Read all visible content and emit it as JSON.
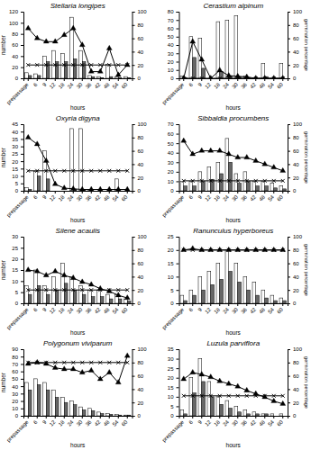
{
  "chart_data": [
    {
      "type": "bar",
      "title": "Stellaria longipes",
      "xlabel": "hours",
      "ylabel": "number",
      "grid": false,
      "categories": [
        "prepassage",
        "6",
        "9",
        "12",
        "18",
        "24",
        "30",
        "36",
        "42",
        "48",
        "54",
        "60"
      ],
      "series": [
        {
          "color": "white",
          "values": [
            10,
            8,
            40,
            50,
            45,
            110,
            50,
            5,
            3,
            25,
            3,
            3
          ]
        },
        {
          "color": "#666666",
          "values": [
            5,
            5,
            30,
            30,
            30,
            35,
            30,
            3,
            1,
            3,
            1,
            1
          ]
        },
        {
          "type": "line",
          "axis": "y2",
          "color": "black",
          "marker": "x",
          "values": [
            20,
            20,
            20,
            20,
            20,
            20,
            20,
            20,
            20,
            20,
            20,
            20
          ]
        },
        {
          "type": "line",
          "axis": "y2",
          "color": "black",
          "marker": "triangle",
          "values": [
            75,
            60,
            55,
            55,
            65,
            75,
            50,
            10,
            10,
            45,
            5,
            20
          ]
        }
      ],
      "ylim": [
        0,
        120
      ],
      "yticks": [
        0,
        20,
        40,
        60,
        80,
        100,
        120
      ],
      "y2lim": [
        0,
        100
      ],
      "y2ticks": [
        0,
        20,
        40,
        60,
        80,
        100
      ]
    },
    {
      "type": "bar",
      "title": "Cerastium alpinum",
      "xlabel": "hours",
      "y2label": "germination percentage",
      "grid": false,
      "categories": [
        "prepassage",
        "6",
        "9",
        "12",
        "18",
        "24",
        "30",
        "36",
        "42",
        "48",
        "54",
        "60"
      ],
      "series": [
        {
          "color": "white",
          "values": [
            3,
            50,
            48,
            0,
            68,
            70,
            75,
            3,
            0,
            18,
            0,
            18
          ]
        },
        {
          "color": "#666666",
          "values": [
            1,
            25,
            12,
            0,
            8,
            3,
            2,
            1,
            0,
            2,
            0,
            0
          ]
        },
        {
          "type": "line",
          "axis": "y2",
          "color": "black",
          "marker": "x",
          "values": [
            0,
            0,
            0,
            0,
            0,
            0,
            0,
            0,
            0,
            0,
            0,
            0
          ]
        },
        {
          "type": "line",
          "axis": "y2",
          "color": "black",
          "marker": "triangle",
          "values": [
            0,
            55,
            28,
            0,
            12,
            4,
            3,
            2,
            0,
            0,
            0,
            0
          ]
        }
      ],
      "ylim": [
        0,
        80
      ],
      "yticks": [
        0,
        10,
        20,
        30,
        40,
        50,
        60,
        70,
        80
      ],
      "y2lim": [
        0,
        100
      ],
      "y2ticks": [
        0,
        20,
        40,
        60,
        80,
        100
      ]
    },
    {
      "type": "bar",
      "title": "Oxyria digyna",
      "xlabel": "hours",
      "ylabel": "number",
      "grid": false,
      "categories": [
        "prepassage",
        "6",
        "9",
        "12",
        "18",
        "24",
        "30",
        "36",
        "42",
        "48",
        "54",
        "60"
      ],
      "series": [
        {
          "color": "white",
          "values": [
            2,
            13,
            27,
            0,
            0,
            42,
            42,
            1,
            0,
            0,
            8,
            0
          ]
        },
        {
          "color": "#666666",
          "values": [
            1,
            10,
            8,
            0,
            0,
            1,
            1,
            0,
            0,
            0,
            0,
            0
          ]
        },
        {
          "type": "line",
          "axis": "y2",
          "color": "black",
          "marker": "x",
          "values": [
            30,
            30,
            30,
            30,
            30,
            30,
            30,
            30,
            30,
            30,
            30,
            30
          ]
        },
        {
          "type": "line",
          "axis": "y2",
          "color": "black",
          "marker": "triangle",
          "values": [
            80,
            70,
            45,
            10,
            4,
            3,
            2,
            2,
            2,
            2,
            2,
            2
          ]
        }
      ],
      "ylim": [
        0,
        45
      ],
      "yticks": [
        0,
        5,
        10,
        15,
        20,
        25,
        30,
        35,
        40,
        45
      ],
      "y2lim": [
        0,
        100
      ],
      "y2ticks": [
        0,
        20,
        40,
        60,
        80,
        100
      ]
    },
    {
      "type": "bar",
      "title": "Sibbaldia procumbens",
      "xlabel": "hours",
      "y2label": "germination percentage",
      "grid": false,
      "categories": [
        "prepassage",
        "6",
        "9",
        "12",
        "18",
        "24",
        "30",
        "36",
        "42",
        "48",
        "54",
        "60"
      ],
      "series": [
        {
          "color": "white",
          "values": [
            10,
            10,
            20,
            25,
            30,
            55,
            18,
            20,
            10,
            10,
            8,
            5
          ]
        },
        {
          "color": "#666666",
          "values": [
            5,
            5,
            10,
            12,
            18,
            30,
            8,
            10,
            5,
            5,
            3,
            2
          ]
        },
        {
          "type": "line",
          "axis": "y2",
          "color": "black",
          "marker": "x",
          "values": [
            15,
            15,
            15,
            15,
            15,
            15,
            15,
            15,
            15,
            15,
            15,
            15
          ]
        },
        {
          "type": "line",
          "axis": "y2",
          "color": "black",
          "marker": "triangle",
          "values": [
            75,
            55,
            60,
            60,
            60,
            55,
            50,
            50,
            45,
            40,
            35,
            30
          ]
        }
      ],
      "ylim": [
        0,
        70
      ],
      "yticks": [
        0,
        10,
        20,
        30,
        40,
        50,
        60,
        70
      ],
      "y2lim": [
        0,
        100
      ],
      "y2ticks": [
        0,
        20,
        40,
        60,
        80,
        100
      ]
    },
    {
      "type": "bar",
      "title": "Silene acaulis",
      "xlabel": "hours",
      "ylabel": "number",
      "grid": false,
      "categories": [
        "prepassage",
        "6",
        "9",
        "12",
        "18",
        "24",
        "30",
        "36",
        "42",
        "48",
        "54",
        "60"
      ],
      "series": [
        {
          "color": "white",
          "values": [
            8,
            15,
            8,
            12,
            18,
            12,
            8,
            6,
            6,
            4,
            4,
            2
          ]
        },
        {
          "color": "#666666",
          "values": [
            4,
            8,
            4,
            6,
            9,
            6,
            4,
            3,
            3,
            2,
            2,
            1
          ]
        },
        {
          "type": "line",
          "axis": "y2",
          "color": "black",
          "marker": "x",
          "values": [
            20,
            20,
            20,
            20,
            20,
            20,
            20,
            20,
            20,
            20,
            20,
            20
          ]
        },
        {
          "type": "line",
          "axis": "y2",
          "color": "black",
          "marker": "triangle",
          "values": [
            50,
            48,
            42,
            48,
            42,
            38,
            32,
            28,
            22,
            18,
            12,
            8
          ]
        }
      ],
      "ylim": [
        0,
        30
      ],
      "yticks": [
        0,
        5,
        10,
        15,
        20,
        25,
        30
      ],
      "y2lim": [
        0,
        100
      ],
      "y2ticks": [
        0,
        20,
        40,
        60,
        80,
        100
      ]
    },
    {
      "type": "bar",
      "title": "Ranunculus hyperboreus",
      "xlabel": "hours",
      "y2label": "germination percentage",
      "grid": false,
      "categories": [
        "prepassage",
        "6",
        "9",
        "12",
        "18",
        "24",
        "30",
        "36",
        "42",
        "48",
        "54",
        "60"
      ],
      "series": [
        {
          "color": "white",
          "values": [
            3,
            5,
            10,
            12,
            15,
            20,
            15,
            10,
            8,
            5,
            3,
            2
          ]
        },
        {
          "color": "#666666",
          "values": [
            1,
            3,
            5,
            7,
            9,
            12,
            8,
            5,
            3,
            2,
            1,
            1
          ]
        },
        {
          "type": "line",
          "axis": "y2",
          "color": "black",
          "marker": "x",
          "values": [
            80,
            80,
            80,
            80,
            80,
            80,
            80,
            80,
            80,
            80,
            80,
            80
          ]
        },
        {
          "type": "line",
          "axis": "y2",
          "color": "black",
          "marker": "triangle",
          "values": [
            80,
            82,
            80,
            80,
            80,
            80,
            80,
            80,
            80,
            80,
            80,
            80
          ]
        }
      ],
      "ylim": [
        0,
        25
      ],
      "yticks": [
        0,
        5,
        10,
        15,
        20,
        25
      ],
      "y2lim": [
        0,
        100
      ],
      "y2ticks": [
        0,
        20,
        40,
        60,
        80,
        100
      ]
    },
    {
      "type": "bar",
      "title": "Polygonum viviparum",
      "xlabel": "hours",
      "ylabel": "number",
      "grid": false,
      "categories": [
        "prepassage",
        "6",
        "9",
        "12",
        "18",
        "24",
        "30",
        "36",
        "42",
        "48",
        "54",
        "60"
      ],
      "series": [
        {
          "color": "white",
          "values": [
            45,
            50,
            45,
            35,
            25,
            20,
            12,
            10,
            5,
            3,
            2,
            1
          ]
        },
        {
          "color": "#666666",
          "values": [
            35,
            42,
            35,
            25,
            18,
            15,
            8,
            7,
            3,
            2,
            1,
            1
          ]
        },
        {
          "type": "line",
          "axis": "y2",
          "color": "black",
          "marker": "x",
          "values": [
            80,
            80,
            80,
            80,
            80,
            80,
            80,
            80,
            80,
            80,
            80,
            80
          ]
        },
        {
          "type": "line",
          "axis": "y2",
          "color": "black",
          "marker": "triangle",
          "values": [
            78,
            80,
            78,
            72,
            70,
            70,
            65,
            68,
            55,
            65,
            50,
            90
          ]
        }
      ],
      "ylim": [
        0,
        90
      ],
      "yticks": [
        0,
        10,
        20,
        30,
        40,
        50,
        60,
        70,
        80,
        90
      ],
      "y2lim": [
        0,
        100
      ],
      "y2ticks": [
        0,
        20,
        40,
        60,
        80,
        100
      ]
    },
    {
      "type": "bar",
      "title": "Luzula parviflora",
      "xlabel": "hours",
      "y2label": "germination percentage",
      "grid": false,
      "categories": [
        "prepassage",
        "6",
        "9",
        "12",
        "18",
        "24",
        "30",
        "36",
        "42",
        "48",
        "54",
        "60"
      ],
      "series": [
        {
          "color": "white",
          "values": [
            3,
            20,
            30,
            18,
            10,
            8,
            5,
            3,
            2,
            1,
            1,
            1
          ]
        },
        {
          "color": "#666666",
          "values": [
            1,
            12,
            18,
            10,
            6,
            4,
            2,
            1,
            1,
            1,
            0,
            0
          ]
        },
        {
          "type": "line",
          "axis": "y2",
          "color": "black",
          "marker": "x",
          "values": [
            30,
            30,
            30,
            30,
            30,
            30,
            30,
            30,
            30,
            30,
            30,
            30
          ]
        },
        {
          "type": "line",
          "axis": "y2",
          "color": "black",
          "marker": "triangle",
          "values": [
            55,
            65,
            62,
            58,
            52,
            48,
            44,
            38,
            33,
            28,
            22,
            18
          ]
        }
      ],
      "ylim": [
        0,
        35
      ],
      "yticks": [
        0,
        5,
        10,
        15,
        20,
        25,
        30,
        35
      ],
      "y2lim": [
        0,
        100
      ],
      "y2ticks": [
        0,
        20,
        40,
        60,
        80,
        100
      ]
    }
  ]
}
